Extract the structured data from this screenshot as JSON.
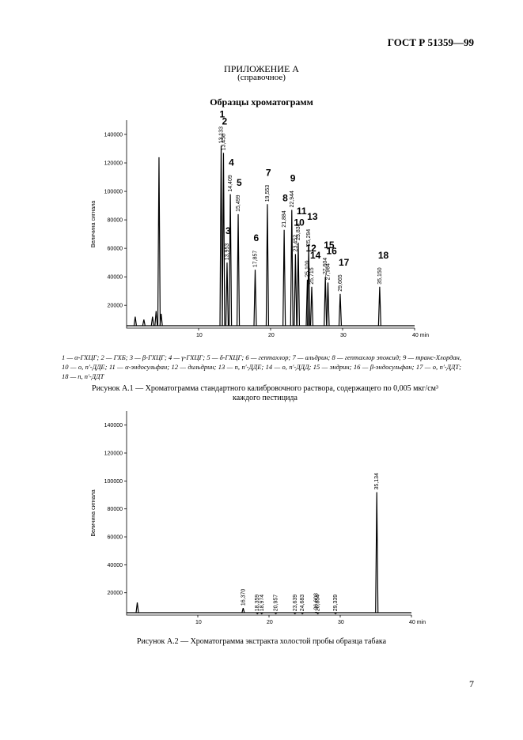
{
  "header": {
    "standard": "ГОСТ Р 51359—99",
    "appendix": "ПРИЛОЖЕНИЕ А",
    "appendix_note": "(справочное)",
    "section_title": "Образцы хроматограмм"
  },
  "legend_text": "1 — α-ГХЦГ; 2 — ГХБ; 3 — β-ГХЦГ; 4 — γ-ГХЦГ; 5 — δ-ГХЦГ; 6 — гептахлор; 7 — альдрин; 8 — гептахлор эпоксид; 9 — транс-Хлордан, 10 — о, п′-ДДЕ; 11 — α-эндосульфан; 12 — дильдрин; 13 — п, п′-ДДЕ; 14 — о, п′-ДДД; 15 — эндрин; 16 — β-эндосульфан; 17 — о, п′-ДДТ; 18 — п, п′-ДДТ",
  "caption_1": "Рисунок А.1 — Хроматограмма стандартного калибровочного раствора, содержащего по 0,005 мкг/см³ каждого пестицида",
  "caption_2": "Рисунок А.2 — Хроматограмма экстракта холостой пробы образца табака",
  "page_number": "7",
  "chart_data": [
    {
      "type": "chromatogram",
      "y_label": "Величина сигнала",
      "x": [
        1.2,
        2.4,
        3.6,
        4.1,
        4.5,
        4.8,
        13.133,
        13.458,
        13.953,
        14.409,
        15.499,
        17.857,
        19.553,
        21.884,
        22.944,
        23.452,
        23.838,
        25.109,
        25.294,
        25.715,
        27.604,
        27.964,
        29.665,
        35.15
      ],
      "values": [
        12000,
        10000,
        12000,
        16000,
        124000,
        14000,
        132000,
        127000,
        50000,
        98000,
        84000,
        45000,
        91000,
        73000,
        87000,
        56000,
        64000,
        38000,
        60000,
        33000,
        40000,
        36000,
        28000,
        33000
      ],
      "x_labels": [
        null,
        null,
        null,
        null,
        null,
        null,
        "13,133",
        "13,458",
        "13,953",
        "14,409",
        "15,499",
        "17,857",
        "19,553",
        "21,884",
        "22,944",
        "23,452",
        "23,838",
        "25,109",
        "25,294",
        "25,715",
        "27,604",
        "27,964",
        "29,665",
        "35,150"
      ],
      "peak_numbers": [
        null,
        null,
        null,
        null,
        null,
        null,
        "1",
        "2",
        "3",
        "4",
        "5",
        "6",
        "7",
        "8",
        "9",
        "10",
        "11",
        "12",
        "13",
        "14",
        "15",
        "16",
        "17",
        "18"
      ],
      "xlim": [
        0,
        40
      ],
      "xticks": [
        10,
        20,
        30,
        {
          "value": 40,
          "label": "40 min"
        }
      ],
      "ylim": [
        4000,
        150000
      ],
      "yticks": [
        20000,
        40000,
        60000,
        80000,
        100000,
        120000,
        140000
      ]
    },
    {
      "type": "chromatogram",
      "y_label": "Величина сигнала",
      "x": [
        1.5,
        16.37,
        18.359,
        18.974,
        20.957,
        23.639,
        24.683,
        26.603,
        26.854,
        29.339,
        35.134
      ],
      "values": [
        13000,
        9000,
        5000,
        5000,
        5000,
        5000,
        5000,
        6000,
        5000,
        5000,
        92000
      ],
      "x_labels": [
        null,
        "16,370",
        "18,359",
        "18,974",
        "20,957",
        "23,639",
        "24,683",
        "26,603",
        "26,854",
        "29,339",
        "35,134"
      ],
      "xlim": [
        0,
        40
      ],
      "xticks": [
        10,
        20,
        30,
        {
          "value": 40,
          "label": "40 min"
        }
      ],
      "ylim": [
        4000,
        150000
      ],
      "yticks": [
        20000,
        40000,
        60000,
        80000,
        100000,
        120000,
        140000
      ]
    }
  ]
}
